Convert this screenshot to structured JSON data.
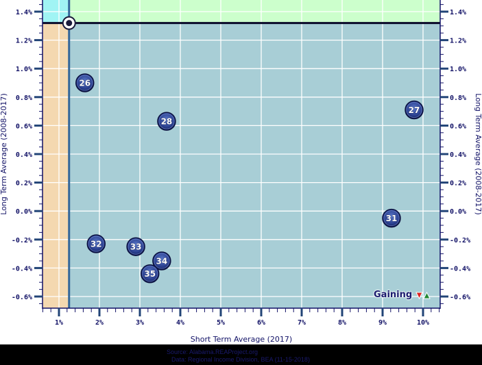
{
  "chart_data": {
    "type": "scatter",
    "title": "",
    "xlabel": "Short Term Average (2017)",
    "ylabel": "Long Term Average (2008-2017)",
    "ylabel_right": "Long Term Average (2008-2017)",
    "x_ticks": [
      "1%",
      "2%",
      "3%",
      "4%",
      "5%",
      "6%",
      "7%",
      "8%",
      "9%",
      "10%"
    ],
    "y_ticks": [
      "1.4%",
      "1.2%",
      "1.0%",
      "0.8%",
      "0.6%",
      "0.4%",
      "0.2%",
      "0.0%",
      "-0.2%",
      "-0.4%",
      "-0.6%"
    ],
    "xlim": [
      0.6,
      10.45
    ],
    "ylim": [
      -0.68,
      1.48
    ],
    "grid": true,
    "reference_point": {
      "x": 1.25,
      "y": 1.32
    },
    "quadrant_colors": {
      "top_left": "#a0f4f4",
      "top_right": "#ccffcc",
      "bottom_left": "#f4d8b0",
      "bottom_right": "#a8ced6"
    },
    "points": [
      {
        "label": "26",
        "x": 1.64,
        "y": 0.9
      },
      {
        "label": "27",
        "x": 9.78,
        "y": 0.71
      },
      {
        "label": "28",
        "x": 3.66,
        "y": 0.63
      },
      {
        "label": "31",
        "x": 9.22,
        "y": -0.05
      },
      {
        "label": "32",
        "x": 1.92,
        "y": -0.23
      },
      {
        "label": "33",
        "x": 2.9,
        "y": -0.25
      },
      {
        "label": "34",
        "x": 3.54,
        "y": -0.35
      },
      {
        "label": "35",
        "x": 3.25,
        "y": -0.44
      }
    ],
    "legend": {
      "label": "Gaining",
      "icons": [
        "down-arrow-red",
        "up-arrow-green"
      ]
    }
  },
  "footer": {
    "source": "Source: Alabama.REAProject.org",
    "data": "Data: Regional Income Division, BEA (11-15-2018)"
  }
}
